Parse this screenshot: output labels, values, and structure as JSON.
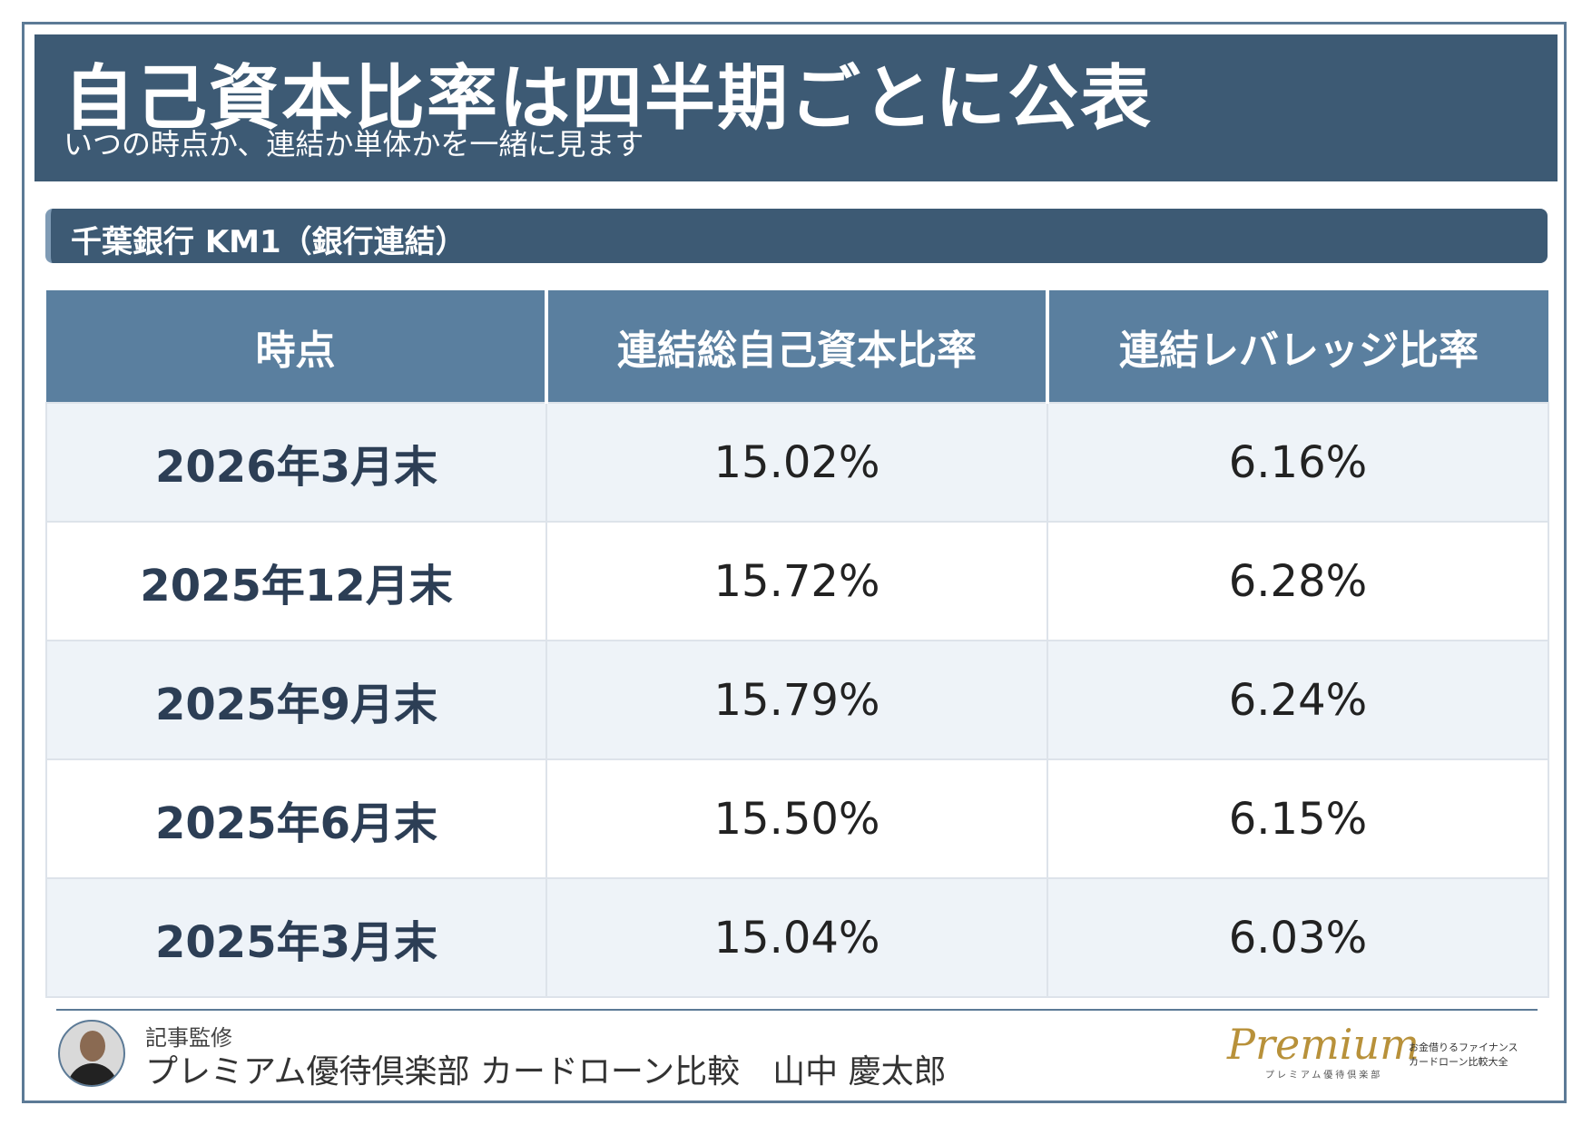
{
  "header": {
    "title": "自己資本比率は四半期ごとに公表",
    "subtitle": "いつの時点か、連結か単体かを一緒に見ます"
  },
  "section": {
    "label": "千葉銀行 KM1（銀行連結）"
  },
  "table": {
    "headers": [
      "時点",
      "連結総自己資本比率",
      "連結レバレッジ比率"
    ],
    "rows": [
      {
        "date": "2026年3月末",
        "capital_ratio": "15.02%",
        "leverage_ratio": "6.16%"
      },
      {
        "date": "2025年12月末",
        "capital_ratio": "15.72%",
        "leverage_ratio": "6.28%"
      },
      {
        "date": "2025年9月末",
        "capital_ratio": "15.79%",
        "leverage_ratio": "6.24%"
      },
      {
        "date": "2025年6月末",
        "capital_ratio": "15.50%",
        "leverage_ratio": "6.15%"
      },
      {
        "date": "2025年3月末",
        "capital_ratio": "15.04%",
        "leverage_ratio": "6.03%"
      }
    ]
  },
  "footer": {
    "supervisor_label": "記事監修",
    "supervisor_name": "プレミアム優待倶楽部 カードローン比較　山中 慶太郎",
    "logo_script": "Premium",
    "logo_sub": "プレミアム優待倶楽部",
    "logo_line1": "お金借りるファイナンス",
    "logo_line2": "カードローン比較大全"
  },
  "colors": {
    "header_bg": "#3d5a74",
    "table_header_bg": "#5a7f9f",
    "row_alt_bg": "#eef3f8",
    "logo_gold": "#b8913a"
  }
}
